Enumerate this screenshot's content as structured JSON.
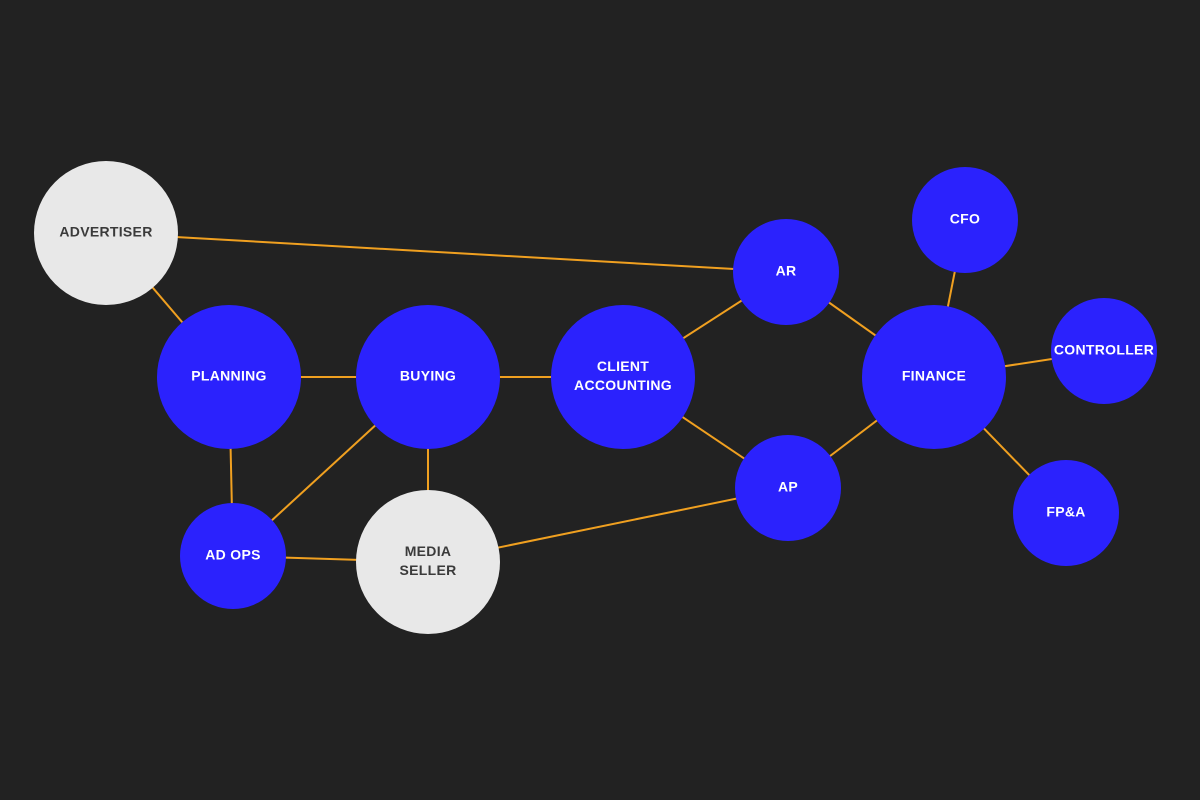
{
  "colors": {
    "background": "#222222",
    "primary_node": "#2b22fd",
    "external_node": "#e8e8e8",
    "primary_text": "#ffffff",
    "external_text": "#3a3a3a",
    "edge": "#f0a020"
  },
  "nodes": [
    {
      "id": "advertiser",
      "lines": [
        "ADVERTISER"
      ],
      "kind": "external"
    },
    {
      "id": "planning",
      "lines": [
        "PLANNING"
      ],
      "kind": "primary"
    },
    {
      "id": "buying",
      "lines": [
        "BUYING"
      ],
      "kind": "primary"
    },
    {
      "id": "client-accounting",
      "lines": [
        "CLIENT",
        "ACCOUNTING"
      ],
      "kind": "primary"
    },
    {
      "id": "ar",
      "lines": [
        "AR"
      ],
      "kind": "primary"
    },
    {
      "id": "ap",
      "lines": [
        "AP"
      ],
      "kind": "primary"
    },
    {
      "id": "finance",
      "lines": [
        "FINANCE"
      ],
      "kind": "primary"
    },
    {
      "id": "cfo",
      "lines": [
        "CFO"
      ],
      "kind": "primary"
    },
    {
      "id": "controller",
      "lines": [
        "CONTROLLER"
      ],
      "kind": "primary"
    },
    {
      "id": "fpa",
      "lines": [
        "FP&A"
      ],
      "kind": "primary"
    },
    {
      "id": "ad-ops",
      "lines": [
        "AD OPS"
      ],
      "kind": "primary"
    },
    {
      "id": "media-seller",
      "lines": [
        "MEDIA",
        "SELLER"
      ],
      "kind": "external"
    }
  ],
  "edges": [
    [
      "advertiser",
      "ar"
    ],
    [
      "advertiser",
      "planning"
    ],
    [
      "planning",
      "buying"
    ],
    [
      "planning",
      "ad-ops"
    ],
    [
      "buying",
      "client-accounting"
    ],
    [
      "buying",
      "ad-ops"
    ],
    [
      "buying",
      "media-seller"
    ],
    [
      "ad-ops",
      "media-seller"
    ],
    [
      "media-seller",
      "ap"
    ],
    [
      "client-accounting",
      "ar"
    ],
    [
      "client-accounting",
      "ap"
    ],
    [
      "ar",
      "finance"
    ],
    [
      "ap",
      "finance"
    ],
    [
      "finance",
      "cfo"
    ],
    [
      "finance",
      "controller"
    ],
    [
      "finance",
      "fpa"
    ]
  ]
}
